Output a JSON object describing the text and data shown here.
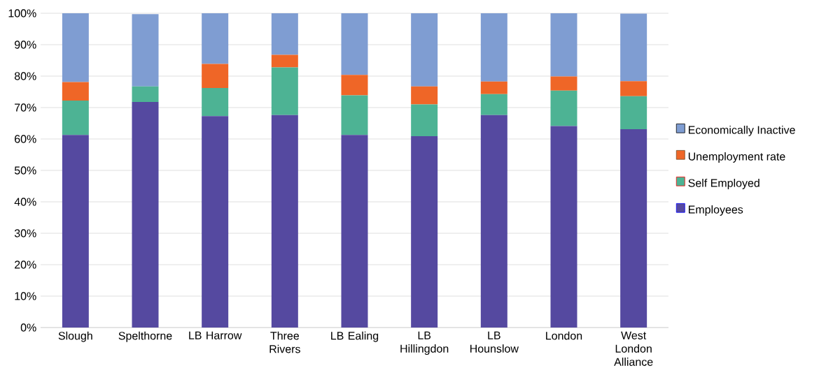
{
  "chart_data": {
    "type": "bar",
    "stacked": true,
    "categories": [
      "Slough",
      "Spelthorne",
      "LB Harrow",
      "Three Rivers",
      "LB Ealing",
      "LB Hillingdon",
      "LB Hounslow",
      "London",
      "West London Alliance"
    ],
    "series": [
      {
        "name": "Employees",
        "color": "#5549a0",
        "values": [
          61.3,
          71.8,
          67.3,
          67.6,
          61.3,
          60.9,
          67.6,
          64.1,
          63.1
        ]
      },
      {
        "name": "Self Employed",
        "color": "#4db394",
        "values": [
          10.9,
          4.9,
          8.9,
          15.2,
          12.6,
          10.1,
          6.7,
          11.3,
          10.5
        ]
      },
      {
        "name": "Unemployment rate",
        "color": "#ef6627",
        "values": [
          5.9,
          0,
          7.7,
          4.0,
          6.5,
          5.7,
          4.0,
          4.5,
          4.8
        ]
      },
      {
        "name": "Economically Inactive",
        "color": "#7f9dd2",
        "values": [
          21.9,
          23.0,
          16.1,
          13.2,
          19.6,
          23.3,
          21.7,
          20.1,
          21.5
        ]
      }
    ],
    "ylim": [
      0,
      100
    ],
    "yticks": [
      {
        "value": 0,
        "label": "0%"
      },
      {
        "value": 10,
        "label": "10%"
      },
      {
        "value": 20,
        "label": "20%"
      },
      {
        "value": 30,
        "label": "30%"
      },
      {
        "value": 40,
        "label": "40%"
      },
      {
        "value": 50,
        "label": "50%"
      },
      {
        "value": 60,
        "label": "60%"
      },
      {
        "value": 70,
        "label": "70%"
      },
      {
        "value": 80,
        "label": "80%"
      },
      {
        "value": 90,
        "label": "90%"
      },
      {
        "value": 100,
        "label": "100%"
      }
    ],
    "grid": "y",
    "legend": "right"
  }
}
